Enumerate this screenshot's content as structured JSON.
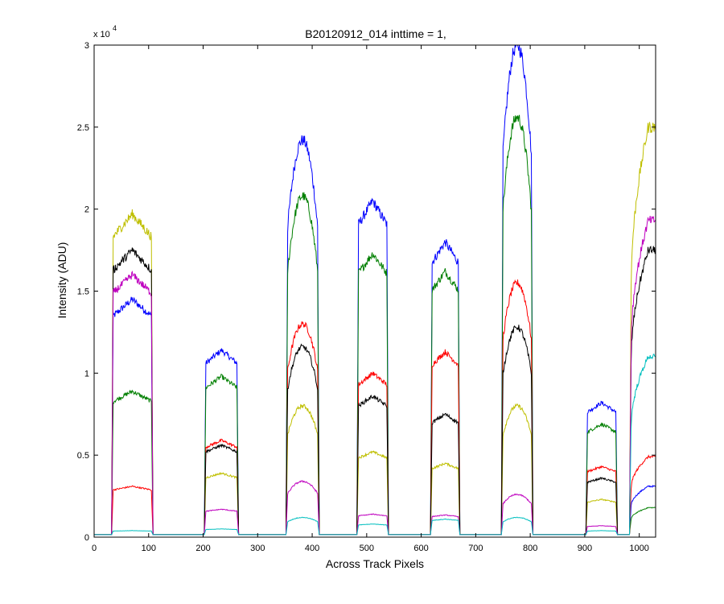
{
  "chart_data": {
    "type": "line",
    "title": "B20120912_014 inttime = 1,",
    "xlabel": "Across Track Pixels",
    "ylabel": "Intensity (ADU)",
    "y_exponent_label": "x 10",
    "y_exponent_power": "4",
    "xlim": [
      0,
      1030
    ],
    "ylim": [
      0,
      30000
    ],
    "xticks": [
      0,
      100,
      200,
      300,
      400,
      500,
      600,
      700,
      800,
      900,
      1000
    ],
    "xtick_labels": [
      "0",
      "100",
      "200",
      "300",
      "400",
      "500",
      "600",
      "700",
      "800",
      "900",
      "1000"
    ],
    "yticks": [
      0,
      5000,
      10000,
      15000,
      20000,
      25000,
      30000
    ],
    "ytick_labels": [
      "0",
      "0.5",
      "1",
      "1.5",
      "2",
      "2.5",
      "3"
    ],
    "grid": false,
    "legend": "none",
    "baseline": 150,
    "segments": [
      {
        "x0": 35,
        "x1": 105,
        "shape": "flat"
      },
      {
        "x0": 205,
        "x1": 262,
        "shape": "flat"
      },
      {
        "x0": 355,
        "x1": 410,
        "shape": "peak"
      },
      {
        "x0": 485,
        "x1": 537,
        "shape": "flat"
      },
      {
        "x0": 620,
        "x1": 668,
        "shape": "flat"
      },
      {
        "x0": 750,
        "x1": 802,
        "shape": "peak"
      },
      {
        "x0": 905,
        "x1": 957,
        "shape": "flat"
      },
      {
        "x0": 985,
        "x1": 1030,
        "shape": "rise"
      }
    ],
    "series": [
      {
        "color": "#0000ff",
        "levels": [
          14500,
          11400,
          24200,
          20500,
          18000,
          30000,
          8200,
          3100
        ]
      },
      {
        "color": "#007f00",
        "levels": [
          8900,
          9800,
          20800,
          17300,
          16200,
          25600,
          6900,
          1800
        ]
      },
      {
        "color": "#ff0000",
        "levels": [
          3100,
          5900,
          13000,
          10000,
          11300,
          15500,
          4300,
          4900
        ]
      },
      {
        "color": "#bfbf00",
        "levels": [
          19700,
          3900,
          8000,
          5200,
          4500,
          8000,
          2300,
          25000
        ]
      },
      {
        "color": "#000000",
        "levels": [
          17500,
          5600,
          11600,
          8600,
          7500,
          12800,
          3600,
          17500
        ]
      },
      {
        "color": "#bf00bf",
        "levels": [
          16000,
          1700,
          3400,
          1400,
          1350,
          2600,
          700,
          19300
        ]
      },
      {
        "color": "#00bfbf",
        "levels": [
          400,
          500,
          1200,
          800,
          1100,
          1200,
          400,
          11000
        ]
      }
    ]
  }
}
